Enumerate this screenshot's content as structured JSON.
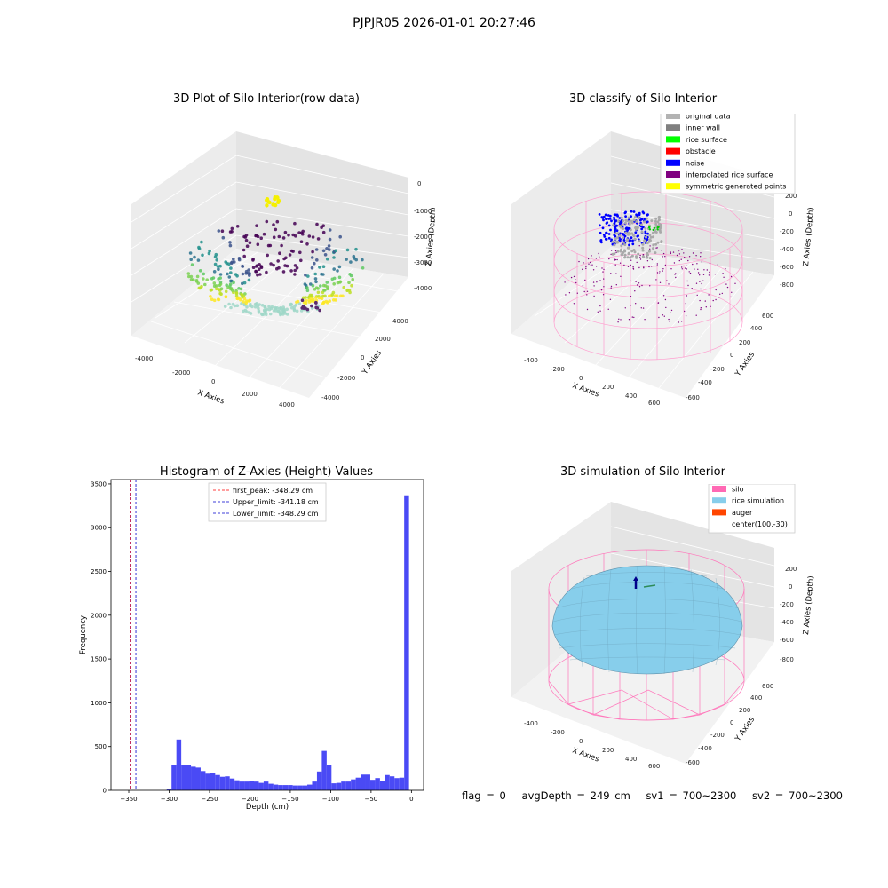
{
  "figure_title": "PJPJR05 2026-01-01 20:27:46",
  "panels": {
    "raw": {
      "title": "3D Plot of Silo Interior(row data)",
      "xlabel": "X Axies",
      "ylabel": "Y Axies",
      "zlabel": "Z Axies (Depth)",
      "xticks": [
        "-4000",
        "-2000",
        "0",
        "2000",
        "4000"
      ],
      "yticks": [
        "-4000",
        "-2000",
        "0",
        "2000",
        "4000"
      ],
      "zticks": [
        "0",
        "-1000",
        "-2000",
        "-3000",
        "-4000"
      ]
    },
    "classify": {
      "title": "3D classify of Silo Interior",
      "xlabel": "X Axies",
      "ylabel": "Y Axies",
      "zlabel": "Z Axies (Depth)",
      "xticks": [
        "-400",
        "-200",
        "0",
        "200",
        "400",
        "600"
      ],
      "yticks": [
        "-600",
        "-400",
        "-200",
        "0",
        "200",
        "400",
        "600"
      ],
      "zticks": [
        "200",
        "0",
        "-200",
        "-400",
        "-600",
        "-800"
      ],
      "legend": [
        {
          "label": "original data",
          "color": "#b3b3b3"
        },
        {
          "label": "inner wall",
          "color": "#808080"
        },
        {
          "label": "rice surface",
          "color": "#00ff00"
        },
        {
          "label": "obstacle",
          "color": "#ff0000"
        },
        {
          "label": "noise",
          "color": "#0000ff"
        },
        {
          "label": "interpolated rice surface",
          "color": "#800080"
        },
        {
          "label": "symmetric generated points",
          "color": "#ffff00"
        }
      ]
    },
    "simulation": {
      "title": "3D simulation of Silo Interior",
      "xlabel": "X Axies",
      "ylabel": "Y Axies",
      "zlabel": "Z Axies (Depth)",
      "xticks": [
        "-400",
        "-200",
        "0",
        "200",
        "400",
        "600"
      ],
      "yticks": [
        "-600",
        "-400",
        "-200",
        "0",
        "200",
        "400",
        "600"
      ],
      "zticks": [
        "200",
        "0",
        "-200",
        "-400",
        "-600",
        "-800"
      ],
      "legend": [
        {
          "label": "silo",
          "color": "#ff69b4"
        },
        {
          "label": "rice simulation",
          "color": "#87ceeb"
        },
        {
          "label": "auger",
          "color": "#ff4500"
        },
        {
          "label": "center(100,-30)",
          "color": ""
        }
      ]
    }
  },
  "chart_data": [
    {
      "type": "histogram",
      "title": "Histogram of Z-Axies (Height) Values",
      "xlabel": "Depth (cm)",
      "ylabel": "Frequency",
      "xlim": [
        -372,
        15
      ],
      "ylim": [
        0,
        3550
      ],
      "xticks": [
        -350,
        -300,
        -250,
        -200,
        -150,
        -100,
        -50,
        0
      ],
      "yticks": [
        0,
        500,
        1000,
        1500,
        2000,
        2500,
        3000,
        3500
      ],
      "bar_color": "#4a4af5",
      "bins": [
        {
          "x0": -303,
          "x1": -297,
          "count": 10
        },
        {
          "x0": -297,
          "x1": -291,
          "count": 290
        },
        {
          "x0": -291,
          "x1": -285,
          "count": 580
        },
        {
          "x0": -285,
          "x1": -279,
          "count": 285
        },
        {
          "x0": -279,
          "x1": -273,
          "count": 285
        },
        {
          "x0": -273,
          "x1": -267,
          "count": 270
        },
        {
          "x0": -267,
          "x1": -261,
          "count": 260
        },
        {
          "x0": -261,
          "x1": -255,
          "count": 220
        },
        {
          "x0": -255,
          "x1": -249,
          "count": 190
        },
        {
          "x0": -249,
          "x1": -243,
          "count": 200
        },
        {
          "x0": -243,
          "x1": -237,
          "count": 175
        },
        {
          "x0": -237,
          "x1": -231,
          "count": 155
        },
        {
          "x0": -231,
          "x1": -225,
          "count": 160
        },
        {
          "x0": -225,
          "x1": -219,
          "count": 135
        },
        {
          "x0": -219,
          "x1": -213,
          "count": 115
        },
        {
          "x0": -213,
          "x1": -207,
          "count": 100
        },
        {
          "x0": -207,
          "x1": -201,
          "count": 100
        },
        {
          "x0": -201,
          "x1": -195,
          "count": 110
        },
        {
          "x0": -195,
          "x1": -189,
          "count": 100
        },
        {
          "x0": -189,
          "x1": -183,
          "count": 85
        },
        {
          "x0": -183,
          "x1": -177,
          "count": 100
        },
        {
          "x0": -177,
          "x1": -171,
          "count": 75
        },
        {
          "x0": -171,
          "x1": -165,
          "count": 65
        },
        {
          "x0": -165,
          "x1": -159,
          "count": 60
        },
        {
          "x0": -159,
          "x1": -153,
          "count": 60
        },
        {
          "x0": -153,
          "x1": -147,
          "count": 60
        },
        {
          "x0": -147,
          "x1": -141,
          "count": 55
        },
        {
          "x0": -141,
          "x1": -135,
          "count": 55
        },
        {
          "x0": -135,
          "x1": -129,
          "count": 55
        },
        {
          "x0": -129,
          "x1": -123,
          "count": 65
        },
        {
          "x0": -123,
          "x1": -117,
          "count": 100
        },
        {
          "x0": -117,
          "x1": -111,
          "count": 215
        },
        {
          "x0": -111,
          "x1": -105,
          "count": 450
        },
        {
          "x0": -105,
          "x1": -99,
          "count": 290
        },
        {
          "x0": -99,
          "x1": -93,
          "count": 80
        },
        {
          "x0": -93,
          "x1": -87,
          "count": 85
        },
        {
          "x0": -87,
          "x1": -81,
          "count": 100
        },
        {
          "x0": -81,
          "x1": -75,
          "count": 100
        },
        {
          "x0": -75,
          "x1": -69,
          "count": 125
        },
        {
          "x0": -69,
          "x1": -63,
          "count": 145
        },
        {
          "x0": -63,
          "x1": -57,
          "count": 180
        },
        {
          "x0": -57,
          "x1": -51,
          "count": 180
        },
        {
          "x0": -51,
          "x1": -45,
          "count": 120
        },
        {
          "x0": -45,
          "x1": -39,
          "count": 140
        },
        {
          "x0": -39,
          "x1": -33,
          "count": 110
        },
        {
          "x0": -33,
          "x1": -27,
          "count": 175
        },
        {
          "x0": -27,
          "x1": -21,
          "count": 160
        },
        {
          "x0": -21,
          "x1": -15,
          "count": 140
        },
        {
          "x0": -15,
          "x1": -9,
          "count": 145
        },
        {
          "x0": -9,
          "x1": -3,
          "count": 3370
        }
      ],
      "vlines": [
        {
          "label": "first_peak: -348.29 cm",
          "x": -348.29,
          "color": "#ff0000",
          "style": "dashed"
        },
        {
          "label": "Upper_limit: -341.18 cm",
          "x": -341.18,
          "color": "#0000cc",
          "style": "dashed"
        },
        {
          "label": "Lower_limit: -348.29 cm",
          "x": -348.29,
          "color": "#0000cc",
          "style": "dashed"
        }
      ],
      "legend_placement": "upper-center"
    }
  ],
  "footer": {
    "flag": "flag = 0",
    "avg_depth": "avgDepth = 249 cm",
    "sv1": "sv1 = 700~2300",
    "sv2": "sv2 = 700~2300"
  }
}
